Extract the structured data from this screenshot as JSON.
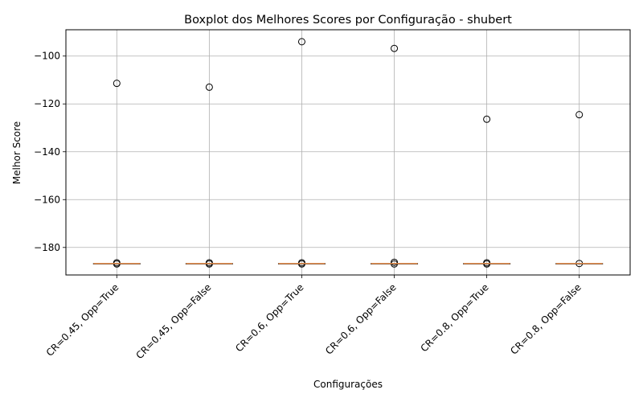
{
  "chart_data": {
    "type": "box",
    "title": "Boxplot dos Melhores Scores por Configuração - shubert",
    "xlabel": "Configurações",
    "ylabel": "Melhor Score",
    "ylim": [
      -191.5,
      -89
    ],
    "yticks": [
      -100,
      -120,
      -140,
      -160,
      -180
    ],
    "grid": true,
    "colors": {
      "median": "#e08a4a",
      "box": "#000000",
      "grid": "#b0b0b0",
      "flier": "#000000"
    },
    "categories": [
      "CR=0.45, Opp=True",
      "CR=0.45, Opp=False",
      "CR=0.6, Opp=True",
      "CR=0.6, Opp=False",
      "CR=0.8, Opp=True",
      "CR=0.8, Opp=False"
    ],
    "series": [
      {
        "q1": -186.73,
        "median": -186.73,
        "q3": -186.73,
        "whisker_low": -186.73,
        "whisker_high": -186.73,
        "fliers": [
          -111.4,
          -186.4,
          -186.9
        ]
      },
      {
        "q1": -186.73,
        "median": -186.73,
        "q3": -186.73,
        "whisker_low": -186.73,
        "whisker_high": -186.73,
        "fliers": [
          -113.0,
          -186.4,
          -186.9
        ]
      },
      {
        "q1": -186.73,
        "median": -186.73,
        "q3": -186.73,
        "whisker_low": -186.73,
        "whisker_high": -186.73,
        "fliers": [
          -94.0,
          -186.4,
          -186.9
        ]
      },
      {
        "q1": -186.73,
        "median": -186.73,
        "q3": -186.73,
        "whisker_low": -186.73,
        "whisker_high": -186.73,
        "fliers": [
          -96.8,
          -186.2,
          -186.9
        ]
      },
      {
        "q1": -186.73,
        "median": -186.73,
        "q3": -186.73,
        "whisker_low": -186.73,
        "whisker_high": -186.73,
        "fliers": [
          -126.4,
          -186.4,
          -186.9
        ]
      },
      {
        "q1": -186.73,
        "median": -186.73,
        "q3": -186.73,
        "whisker_low": -186.73,
        "whisker_high": -186.73,
        "fliers": [
          -124.5,
          -186.7
        ]
      }
    ]
  }
}
